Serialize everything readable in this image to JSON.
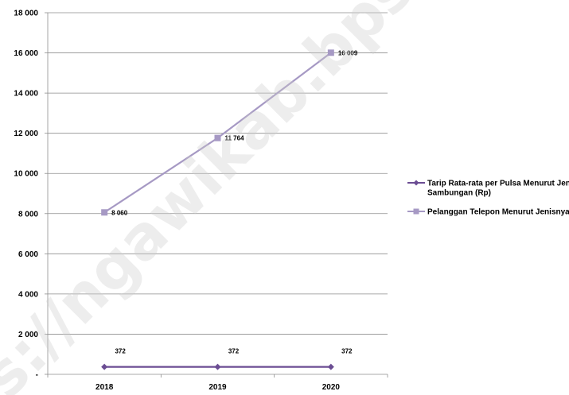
{
  "watermark": "s://ngawikab.bps.go.id",
  "chart_data": {
    "type": "line",
    "title": "",
    "xlabel": "",
    "ylabel": "",
    "categories": [
      "2018",
      "2019",
      "2020"
    ],
    "ylim": [
      0,
      18000
    ],
    "yticks": [
      {
        "value": 0,
        "label": "-"
      },
      {
        "value": 2000,
        "label": "2 000"
      },
      {
        "value": 4000,
        "label": "4 000"
      },
      {
        "value": 6000,
        "label": "6 000"
      },
      {
        "value": 8000,
        "label": "8 000"
      },
      {
        "value": 10000,
        "label": "10 000"
      },
      {
        "value": 12000,
        "label": "12 000"
      },
      {
        "value": 14000,
        "label": "14 000"
      },
      {
        "value": 16000,
        "label": "16 000"
      },
      {
        "value": 18000,
        "label": "18 000"
      }
    ],
    "grid": true,
    "legend_position": "right",
    "series": [
      {
        "name": "Tarip Rata-rata per Pulsa Menurut Jenis Sambungan (Rp)",
        "legend_lines": [
          "Tarip Rata-rata per Pulsa Menurut Jenis",
          "Sambungan (Rp)"
        ],
        "values": [
          372,
          372,
          372
        ],
        "labels": [
          "372",
          "372",
          "372"
        ],
        "color": "#6b4d93",
        "marker": "diamond"
      },
      {
        "name": "Pelanggan Telepon Menurut Jenisnya",
        "legend_lines": [
          "Pelanggan Telepon Menurut Jenisnya"
        ],
        "values": [
          8060,
          11764,
          16009
        ],
        "labels": [
          "8 060",
          "11 764",
          "16 009"
        ],
        "color": "#a699c4",
        "marker": "square"
      }
    ]
  }
}
